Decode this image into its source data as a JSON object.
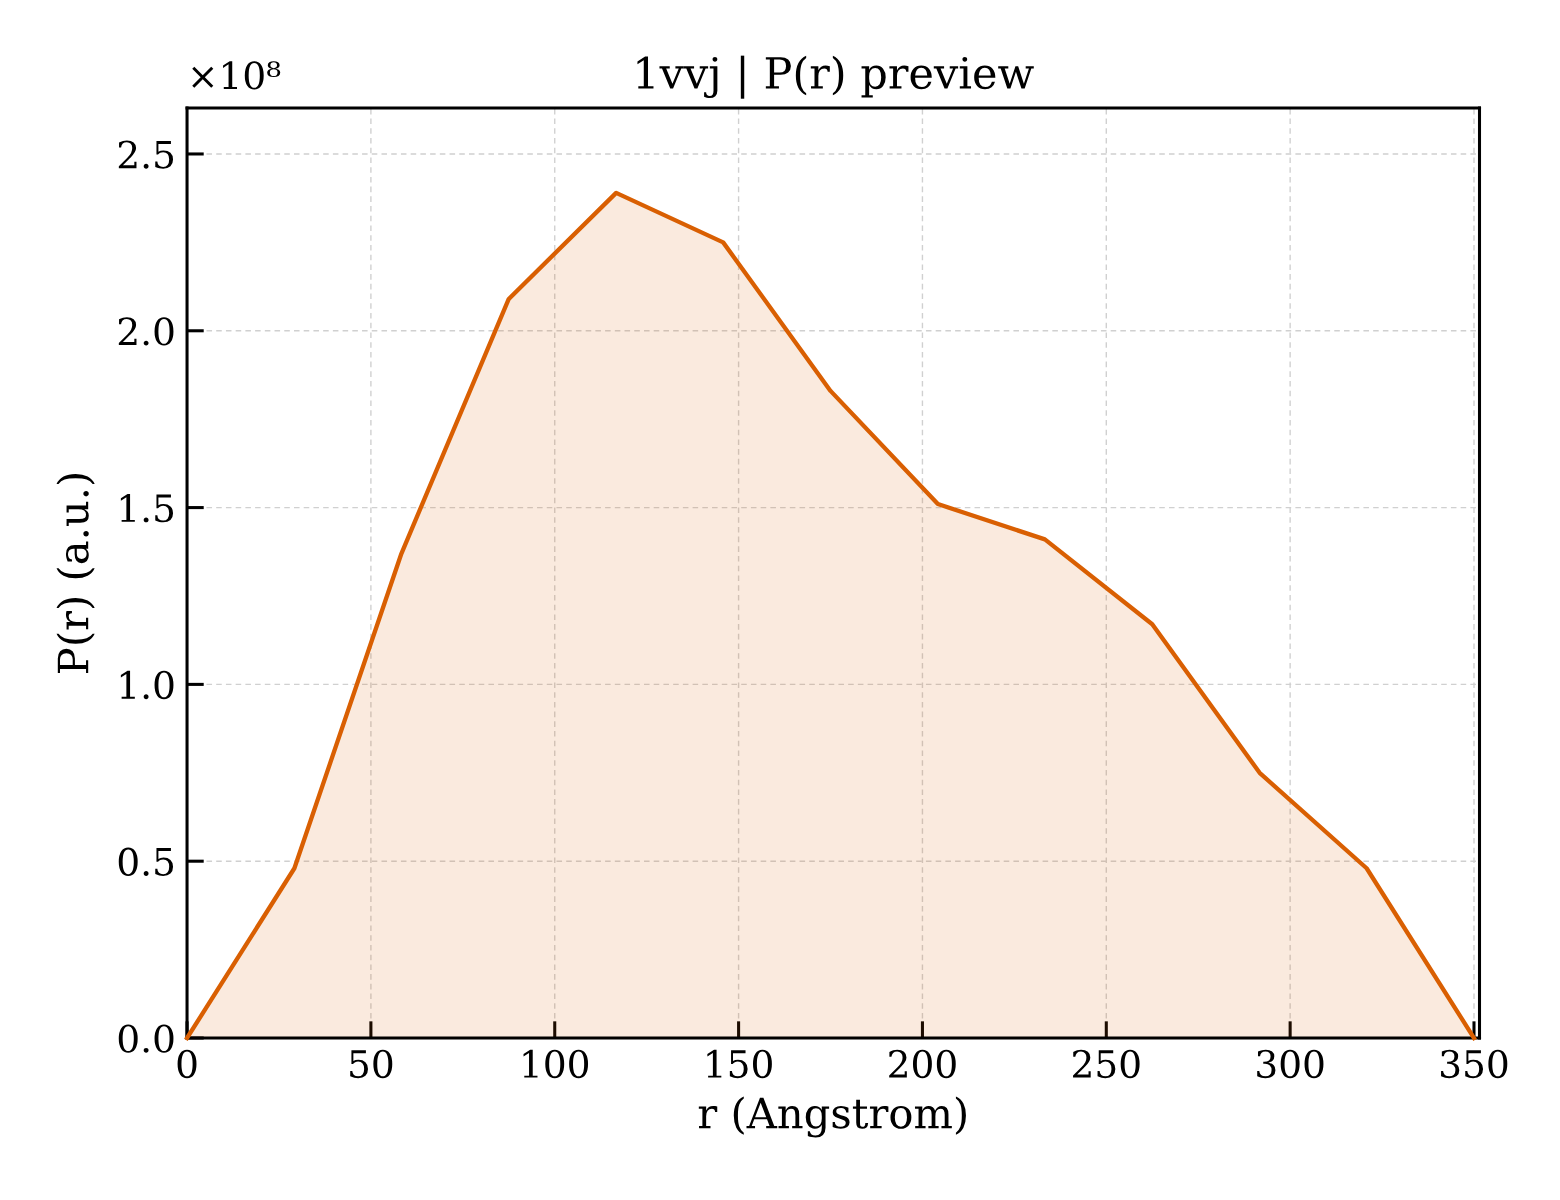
{
  "chart_data": {
    "type": "area",
    "title": "1vvj | P(r) preview",
    "xlabel": "r (Angstrom)",
    "ylabel": "P(r) (a.u.)",
    "x": [
      0,
      29.2,
      58.3,
      87.5,
      116.7,
      145.8,
      175.0,
      204.2,
      233.3,
      262.5,
      291.7,
      320.8,
      350
    ],
    "series": [
      {
        "color": "#d95f02",
        "values": [
          0,
          0.48,
          1.37,
          2.09,
          2.39,
          2.25,
          1.83,
          1.51,
          1.41,
          1.17,
          0.75,
          0.48,
          0
        ]
      }
    ],
    "xlim": [
      0,
      351.5
    ],
    "ylim": [
      0,
      2.63
    ],
    "xticks": [
      0,
      50,
      100,
      150,
      200,
      250,
      300,
      350
    ],
    "yticks": [
      {
        "value": 0,
        "label": "0.0"
      },
      0.5,
      {
        "value": 1,
        "label": "1.0"
      },
      1.5,
      {
        "value": 2,
        "label": "2.0"
      },
      2.5
    ],
    "grid": true,
    "line_style": "solid",
    "marker": "none",
    "annotations": [
      "×10⁸"
    ]
  }
}
